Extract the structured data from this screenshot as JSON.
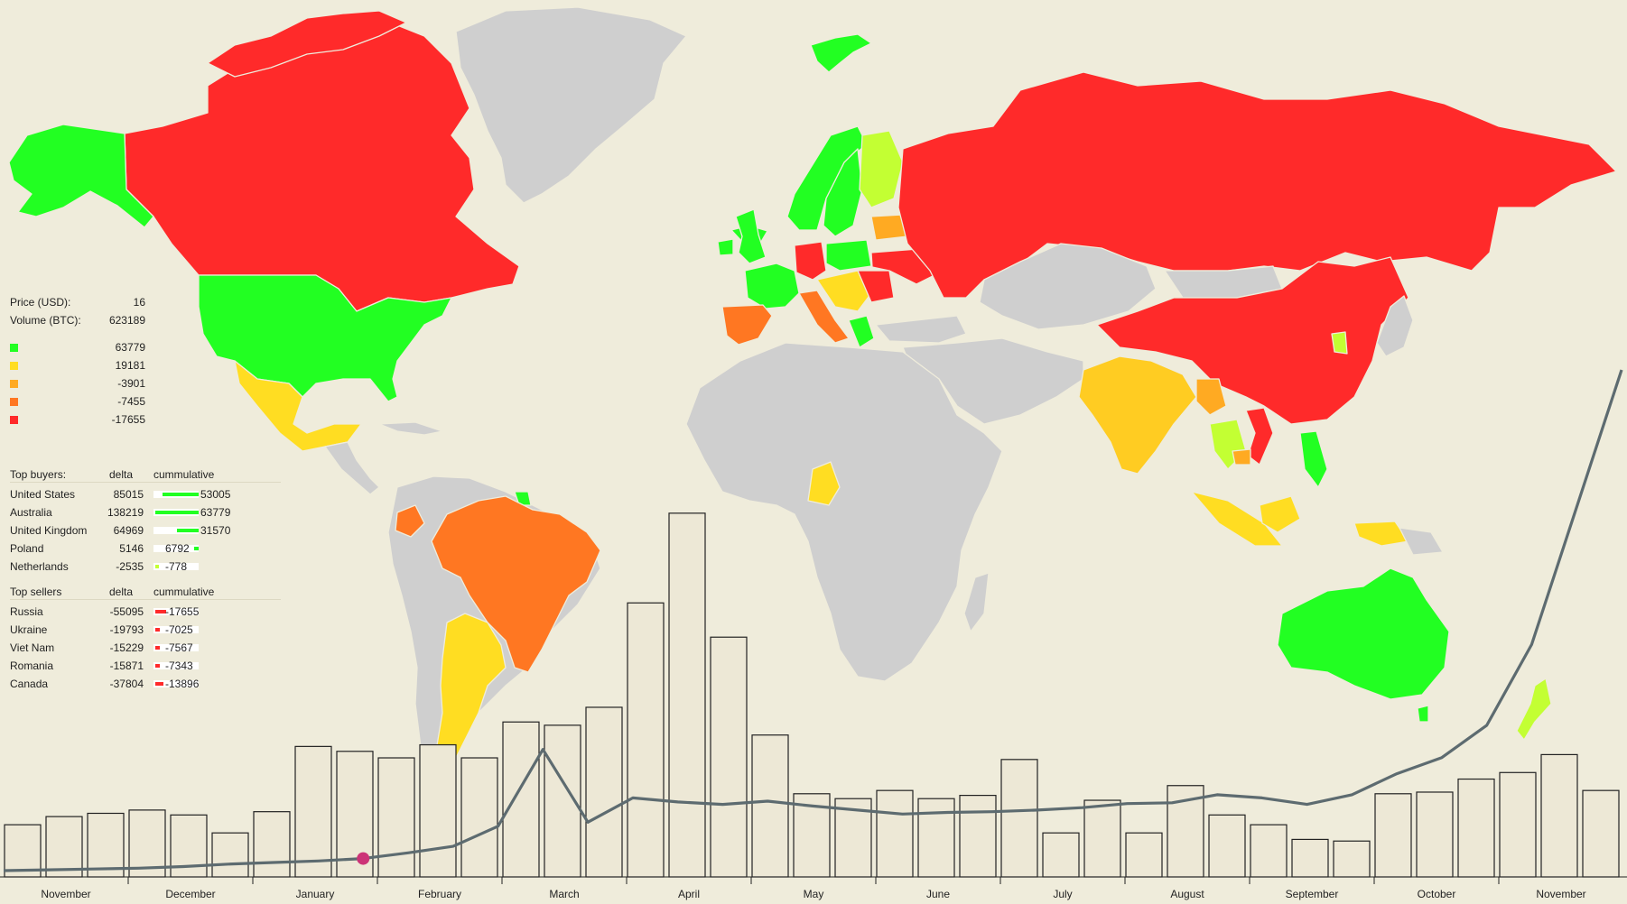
{
  "colors": {
    "background": "#efecdb",
    "no_data": "#cfcfcf",
    "buy_strong": "#22ff22",
    "buy_light": "#c3ff33",
    "neutral": "#ffdd22",
    "sell_mild": "#ffaa22",
    "sell_moderate": "#ff7722",
    "sell_strong": "#ff2a2a",
    "marker": "#cc3377",
    "price_line": "#5d6b70"
  },
  "stats": {
    "price_label": "Price (USD):",
    "price_value": "16",
    "volume_label": "Volume (BTC):",
    "volume_value": "623189"
  },
  "legend": [
    {
      "color": "#22ff22",
      "value": "63779"
    },
    {
      "color": "#ffdd22",
      "value": "19181"
    },
    {
      "color": "#ffaa22",
      "value": "-3901"
    },
    {
      "color": "#ff7722",
      "value": "-7455"
    },
    {
      "color": "#ff2a2a",
      "value": "-17655"
    }
  ],
  "top_buyers": {
    "title": "Top buyers:",
    "delta_header": "delta",
    "cumulative_header": "cummulative",
    "rows": [
      {
        "country": "United States",
        "delta": "85015",
        "cumulative": "53005",
        "level": 0.83,
        "color": "#22ff22"
      },
      {
        "country": "Australia",
        "delta": "138219",
        "cumulative": "63779",
        "level": 1.0,
        "color": "#22ff22"
      },
      {
        "country": "United Kingdom",
        "delta": "64969",
        "cumulative": "31570",
        "level": 0.5,
        "color": "#22ff22"
      },
      {
        "country": "Poland",
        "delta": "5146",
        "cumulative": "6792",
        "level": 0.11,
        "color": "#22ff22"
      },
      {
        "country": "Netherlands",
        "delta": "-2535",
        "cumulative": "-778",
        "level": -0.05,
        "color": "#c3ff33"
      }
    ]
  },
  "top_sellers": {
    "title": "Top sellers",
    "delta_header": "delta",
    "cumulative_header": "cummulative",
    "rows": [
      {
        "country": "Russia",
        "delta": "-55095",
        "cumulative": "-17655",
        "level": -1.0,
        "color": "#ff2a2a"
      },
      {
        "country": "Ukraine",
        "delta": "-19793",
        "cumulative": "-7025",
        "level": -0.4,
        "color": "#ff2a2a"
      },
      {
        "country": "Viet Nam",
        "delta": "-15229",
        "cumulative": "-7567",
        "level": -0.43,
        "color": "#ff2a2a"
      },
      {
        "country": "Romania",
        "delta": "-15871",
        "cumulative": "-7343",
        "level": -0.42,
        "color": "#ff2a2a"
      },
      {
        "country": "Canada",
        "delta": "-37804",
        "cumulative": "-13896",
        "level": -0.79,
        "color": "#ff2a2a"
      }
    ]
  },
  "chart_data": {
    "type": "bar",
    "bar_series_note_free": true,
    "volume_bars": [
      3.2,
      3.7,
      3.9,
      4.1,
      3.8,
      2.7,
      4.0,
      8.0,
      7.7,
      7.3,
      8.1,
      7.3,
      9.5,
      9.3,
      10.4,
      16.8,
      22.3,
      14.7,
      8.7,
      5.1,
      4.8,
      5.3,
      4.8,
      5.0,
      7.2,
      2.7,
      4.7,
      2.7,
      5.6,
      3.8,
      3.2,
      2.3,
      2.2,
      5.1,
      5.2,
      6.0,
      6.4,
      7.5,
      5.3
    ],
    "y_range": [
      0,
      25
    ],
    "month_labels": [
      "November",
      "December",
      "January",
      "February",
      "March",
      "April",
      "May",
      "June",
      "July",
      "August",
      "September",
      "October",
      "November"
    ],
    "price_line": {
      "points": [
        0.0,
        0.1,
        0.2,
        0.3,
        0.5,
        0.8,
        1.0,
        1.2,
        1.5,
        2.2,
        3.0,
        5.5,
        15.0,
        6.0,
        9.0,
        8.5,
        8.2,
        8.6,
        8.0,
        7.5,
        7.0,
        7.2,
        7.3,
        7.5,
        7.8,
        8.3,
        8.4,
        9.4,
        9.0,
        8.2,
        9.4,
        12.0,
        14.0,
        18.0,
        28.0,
        45.0,
        62.0
      ],
      "current_marker_index": 8
    }
  }
}
